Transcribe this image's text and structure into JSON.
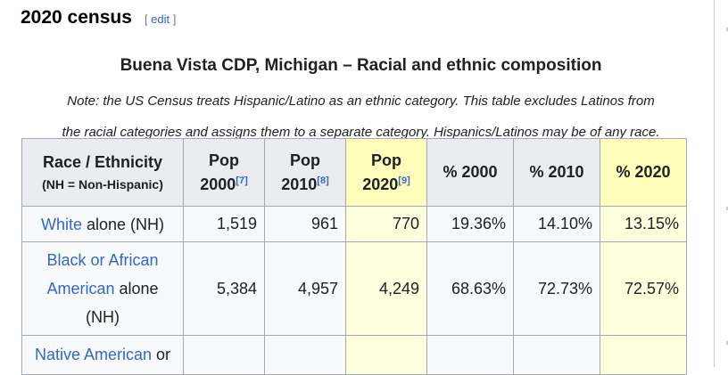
{
  "section": {
    "title": "2020 census",
    "edit_open": "[ ",
    "edit_label": "edit",
    "edit_close": " ]"
  },
  "table": {
    "caption": "Buena Vista CDP, Michigan – Racial and ethnic composition",
    "note_line1": "Note: the US Census treats Hispanic/Latino as an ethnic category. This table excludes Latinos from",
    "note_line2": "the racial categories and assigns them to a separate category. Hispanics/Latinos may be of any race.",
    "headers": {
      "race": "Race / Ethnicity",
      "race_sub": "(NH = Non-Hispanic)",
      "pop2000_a": "Pop",
      "pop2000_b": "2000",
      "pop2000_ref": "[7]",
      "pop2010_a": "Pop",
      "pop2010_b": "2010",
      "pop2010_ref": "[8]",
      "pop2020_a": "Pop",
      "pop2020_b": "2020",
      "pop2020_ref": "[9]",
      "pct2000": "% 2000",
      "pct2010": "% 2010",
      "pct2020": "% 2020"
    },
    "rows": [
      {
        "link": "White",
        "rest": " alone (NH)",
        "pop2000": "1,519",
        "pop2010": "961",
        "pop2020": "770",
        "pct2000": "19.36%",
        "pct2010": "14.10%",
        "pct2020": "13.15%"
      },
      {
        "link_l1": "Black or African",
        "link_l2": "American",
        "rest_l2": " alone",
        "rest_l3": "(NH)",
        "pop2000": "5,384",
        "pop2010": "4,957",
        "pop2020": "4,249",
        "pct2000": "68.63%",
        "pct2010": "72.73%",
        "pct2020": "72.57%"
      },
      {
        "link": "Native American",
        "rest": " or"
      }
    ]
  },
  "colors": {
    "link": "#3366cc",
    "header_bg": "#eaecf0",
    "highlight_header": "#ffffbb",
    "highlight_cell": "#ffffdd"
  }
}
